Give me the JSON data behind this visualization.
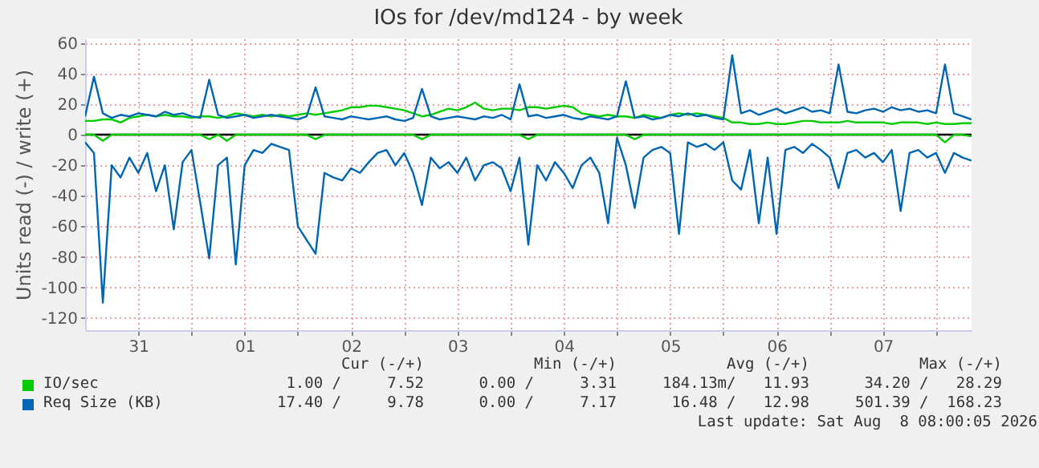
{
  "chart_data": {
    "type": "line",
    "title": "IOs for /dev/md124 - by week",
    "ylabel": "Units read (-) / write (+)",
    "x": [
      "2026-07-31T00:00",
      "2026-07-31T02:00",
      "2026-07-31T04:00",
      "2026-07-31T06:00",
      "2026-07-31T08:00",
      "2026-07-31T10:00",
      "2026-07-31T12:00",
      "2026-07-31T14:00",
      "2026-07-31T16:00",
      "2026-07-31T18:00",
      "2026-07-31T20:00",
      "2026-07-31T22:00",
      "2026-08-01T00:00",
      "2026-08-01T02:00",
      "2026-08-01T04:00",
      "2026-08-01T06:00",
      "2026-08-01T08:00",
      "2026-08-01T10:00",
      "2026-08-01T12:00",
      "2026-08-01T14:00",
      "2026-08-01T16:00",
      "2026-08-01T18:00",
      "2026-08-01T20:00",
      "2026-08-01T22:00",
      "2026-08-02T00:00",
      "2026-08-02T02:00",
      "2026-08-02T04:00",
      "2026-08-02T06:00",
      "2026-08-02T08:00",
      "2026-08-02T10:00",
      "2026-08-02T12:00",
      "2026-08-02T14:00",
      "2026-08-02T16:00",
      "2026-08-02T18:00",
      "2026-08-02T20:00",
      "2026-08-02T22:00",
      "2026-08-03T00:00",
      "2026-08-03T02:00",
      "2026-08-03T04:00",
      "2026-08-03T06:00",
      "2026-08-03T08:00",
      "2026-08-03T10:00",
      "2026-08-03T12:00",
      "2026-08-03T14:00",
      "2026-08-03T16:00",
      "2026-08-03T18:00",
      "2026-08-03T20:00",
      "2026-08-03T22:00",
      "2026-08-04T00:00",
      "2026-08-04T02:00",
      "2026-08-04T04:00",
      "2026-08-04T06:00",
      "2026-08-04T08:00",
      "2026-08-04T10:00",
      "2026-08-04T12:00",
      "2026-08-04T14:00",
      "2026-08-04T16:00",
      "2026-08-04T18:00",
      "2026-08-04T20:00",
      "2026-08-04T22:00",
      "2026-08-05T00:00",
      "2026-08-05T02:00",
      "2026-08-05T04:00",
      "2026-08-05T06:00",
      "2026-08-05T08:00",
      "2026-08-05T10:00",
      "2026-08-05T12:00",
      "2026-08-05T14:00",
      "2026-08-05T16:00",
      "2026-08-05T18:00",
      "2026-08-05T20:00",
      "2026-08-05T22:00",
      "2026-08-06T00:00",
      "2026-08-06T02:00",
      "2026-08-06T04:00",
      "2026-08-06T06:00",
      "2026-08-06T08:00",
      "2026-08-06T10:00",
      "2026-08-06T12:00",
      "2026-08-06T14:00",
      "2026-08-06T16:00",
      "2026-08-06T18:00",
      "2026-08-06T20:00",
      "2026-08-06T22:00",
      "2026-08-07T00:00",
      "2026-08-07T02:00",
      "2026-08-07T04:00",
      "2026-08-07T06:00",
      "2026-08-07T08:00",
      "2026-08-07T10:00",
      "2026-08-07T12:00",
      "2026-08-07T14:00",
      "2026-08-07T16:00",
      "2026-08-07T18:00",
      "2026-08-07T20:00",
      "2026-08-07T22:00",
      "2026-08-08T00:00",
      "2026-08-08T02:00",
      "2026-08-08T04:00",
      "2026-08-08T06:00",
      "2026-08-08T08:00"
    ],
    "series": [
      {
        "color": "#00cc00",
        "values": [
          0,
          0,
          -4,
          0,
          0,
          0,
          0,
          0,
          0,
          0,
          0,
          0,
          0,
          0,
          -3,
          0,
          -4,
          0,
          0,
          0,
          0,
          0,
          0,
          0,
          0,
          0,
          -3,
          0,
          0,
          0,
          0,
          0,
          0,
          0,
          0,
          0,
          0,
          0,
          -3,
          0,
          0,
          0,
          0,
          0,
          0,
          0,
          0,
          0,
          0,
          0,
          -3,
          0,
          0,
          0,
          0,
          0,
          0,
          0,
          0,
          0,
          0,
          0,
          -3,
          0,
          0,
          0,
          0,
          0,
          0,
          0,
          0,
          0,
          0,
          0,
          0,
          0,
          0,
          0,
          0,
          0,
          0,
          0,
          0,
          0,
          0,
          0,
          0,
          0,
          0,
          0,
          0,
          0,
          0,
          0,
          0,
          0,
          0,
          -5,
          0,
          0,
          -1
        ]
      },
      {
        "name": "IO/sec",
        "color": "#00cc00",
        "values": [
          9,
          9,
          10,
          10,
          8,
          11,
          12,
          13,
          12,
          13,
          12,
          12,
          11,
          12,
          12,
          11,
          12,
          14,
          13,
          12,
          13,
          12,
          13,
          12,
          13,
          14,
          13,
          14,
          15,
          16,
          18,
          18,
          19,
          19,
          18,
          17,
          16,
          14,
          12,
          13,
          15,
          17,
          16,
          18,
          21,
          17,
          16,
          17,
          17,
          16,
          18,
          18,
          17,
          18,
          19,
          18,
          14,
          13,
          12,
          13,
          12,
          12,
          11,
          13,
          12,
          11,
          13,
          14,
          13,
          14,
          13,
          12,
          11,
          8,
          8,
          7,
          7,
          8,
          7,
          7,
          8,
          9,
          9,
          8,
          8,
          8,
          9,
          8,
          8,
          8,
          8,
          7,
          8,
          8,
          8,
          7,
          8,
          7,
          7,
          7.5,
          7.5
        ]
      },
      {
        "color": "#0066b3",
        "values": [
          -5,
          -12,
          -110,
          -20,
          -28,
          -15,
          -25,
          -12,
          -37,
          -20,
          -62,
          -18,
          -10,
          -45,
          -81,
          -20,
          -15,
          -85,
          -20,
          -10,
          -12,
          -6,
          -8,
          -10,
          -60,
          -69,
          -78,
          -25,
          -28,
          -30,
          -22,
          -25,
          -18,
          -12,
          -10,
          -20,
          -12,
          -25,
          -46,
          -15,
          -22,
          -18,
          -25,
          -15,
          -30,
          -20,
          -18,
          -22,
          -37,
          -15,
          -72,
          -20,
          -30,
          -18,
          -25,
          -35,
          -20,
          -15,
          -25,
          -58,
          -2,
          -20,
          -48,
          -15,
          -10,
          -8,
          -12,
          -65,
          -5,
          -8,
          -6,
          -10,
          -5,
          -30,
          -36,
          -10,
          -58,
          -15,
          -65,
          -10,
          -8,
          -12,
          -6,
          -10,
          -15,
          -35,
          -12,
          -10,
          -15,
          -12,
          -18,
          -10,
          -50,
          -12,
          -10,
          -15,
          -12,
          -25,
          -12,
          -15,
          -17
        ]
      },
      {
        "name": "Req Size (KB)",
        "color": "#0066b3",
        "values": [
          12,
          38,
          14,
          11,
          13,
          12,
          14,
          13,
          12,
          15,
          13,
          14,
          12,
          11,
          36,
          13,
          11,
          12,
          13,
          11,
          12,
          13,
          12,
          11,
          10,
          12,
          31,
          12,
          11,
          10,
          12,
          11,
          10,
          11,
          12,
          10,
          9,
          11,
          30,
          12,
          10,
          11,
          12,
          11,
          10,
          12,
          11,
          13,
          10,
          33,
          12,
          13,
          11,
          12,
          13,
          11,
          10,
          12,
          11,
          10,
          12,
          35,
          11,
          12,
          10,
          11,
          13,
          12,
          14,
          12,
          13,
          11,
          10,
          52,
          14,
          16,
          13,
          15,
          17,
          14,
          16,
          18,
          15,
          16,
          14,
          46,
          15,
          14,
          16,
          17,
          15,
          18,
          16,
          17,
          15,
          16,
          14,
          46,
          14,
          12,
          10
        ]
      }
    ],
    "xlim": [
      "2026-07-31T00:00",
      "2026-08-08T08:00"
    ],
    "xticks": [
      {
        "value": "2026-07-31T12:00",
        "label": "31"
      },
      {
        "value": "2026-08-01T00:00",
        "label": null
      },
      {
        "value": "2026-08-01T12:00",
        "label": "01"
      },
      {
        "value": "2026-08-02T00:00",
        "label": null
      },
      {
        "value": "2026-08-02T12:00",
        "label": "02"
      },
      {
        "value": "2026-08-03T00:00",
        "label": null
      },
      {
        "value": "2026-08-03T12:00",
        "label": "03"
      },
      {
        "value": "2026-08-04T00:00",
        "label": null
      },
      {
        "value": "2026-08-04T12:00",
        "label": "04"
      },
      {
        "value": "2026-08-05T00:00",
        "label": null
      },
      {
        "value": "2026-08-05T12:00",
        "label": "05"
      },
      {
        "value": "2026-08-06T00:00",
        "label": null
      },
      {
        "value": "2026-08-06T12:00",
        "label": "06"
      },
      {
        "value": "2026-08-07T00:00",
        "label": null
      },
      {
        "value": "2026-08-07T12:00",
        "label": "07"
      },
      {
        "value": "2026-08-08T00:00",
        "label": null
      }
    ],
    "ylim": [
      -128,
      63
    ],
    "yticks": [
      -120,
      -100,
      -80,
      -60,
      -40,
      -20,
      0,
      20,
      40,
      60
    ],
    "ref_lines": [
      {
        "axis": "y",
        "value": 0,
        "color": "#000000"
      }
    ],
    "grid": true,
    "legend": "bottom left",
    "annotations": [
      "Cur (-/+)",
      "Min (-/+)",
      "Avg (-/+)",
      "Max (-/+)",
      "1.00 /     7.52",
      "0.00 /     3.31",
      "184.13m/   11.93",
      "34.20 /   28.29",
      "17.40 /     9.78",
      "0.00 /     7.17",
      "16.48 /   12.98",
      "501.39 /  168.23",
      "Last update: Sat Aug  8 08:00:05 2026"
    ]
  }
}
